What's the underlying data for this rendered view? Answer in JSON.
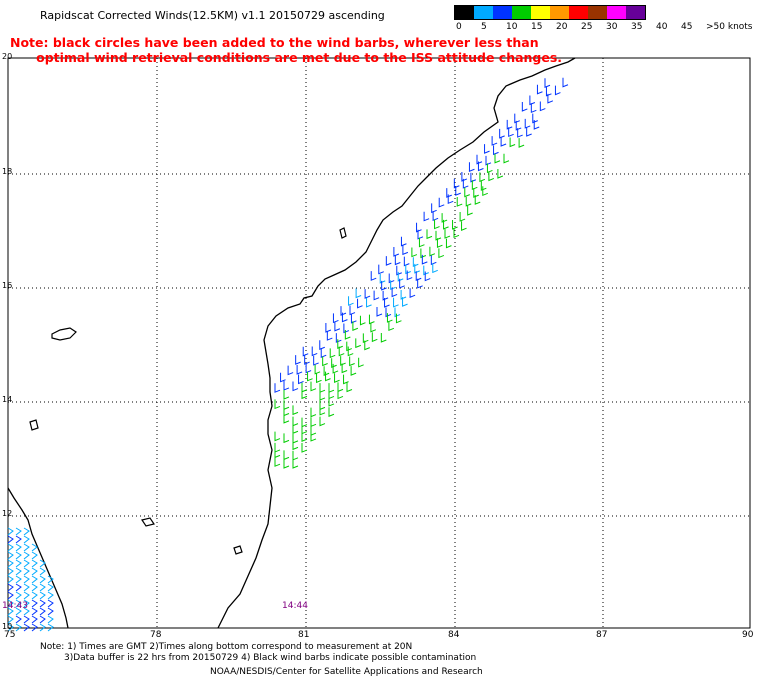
{
  "header": {
    "title": "Rapidscat Corrected Winds(12.5KM) v1.1 20150729 ascending",
    "note_line1": "Note: black circles have been added to the wind barbs, wherever less than",
    "note_line2": "      optimal wind retrieval conditions are met due to the ISS attitude changes."
  },
  "legend": {
    "colors": [
      "#000000",
      "#00aaff",
      "#0033ff",
      "#00cc00",
      "#ffff00",
      "#ff9900",
      "#ff0000",
      "#993300",
      "#ff00ff",
      "#660099"
    ],
    "labels": [
      "0",
      "5",
      "10",
      "15",
      "20",
      "25",
      "30",
      "35",
      "40",
      "45",
      ">50 knots"
    ]
  },
  "map": {
    "lat_labels": [
      "20",
      "18",
      "16",
      "14",
      "12",
      "10"
    ],
    "lon_labels": [
      "75",
      "78",
      "81",
      "84",
      "87",
      "90"
    ],
    "time_labels": [
      "14:43",
      "14:44"
    ]
  },
  "footer": {
    "line1": "Note: 1) Times are GMT 2)Times along bottom correspond to measurement at 20N",
    "line2": "3)Data buffer is 22 hrs from 20150729 4) Black wind barbs indicate possible contamination",
    "line3": "NOAA/NESDIS/Center for Satellite Applications and Research"
  }
}
